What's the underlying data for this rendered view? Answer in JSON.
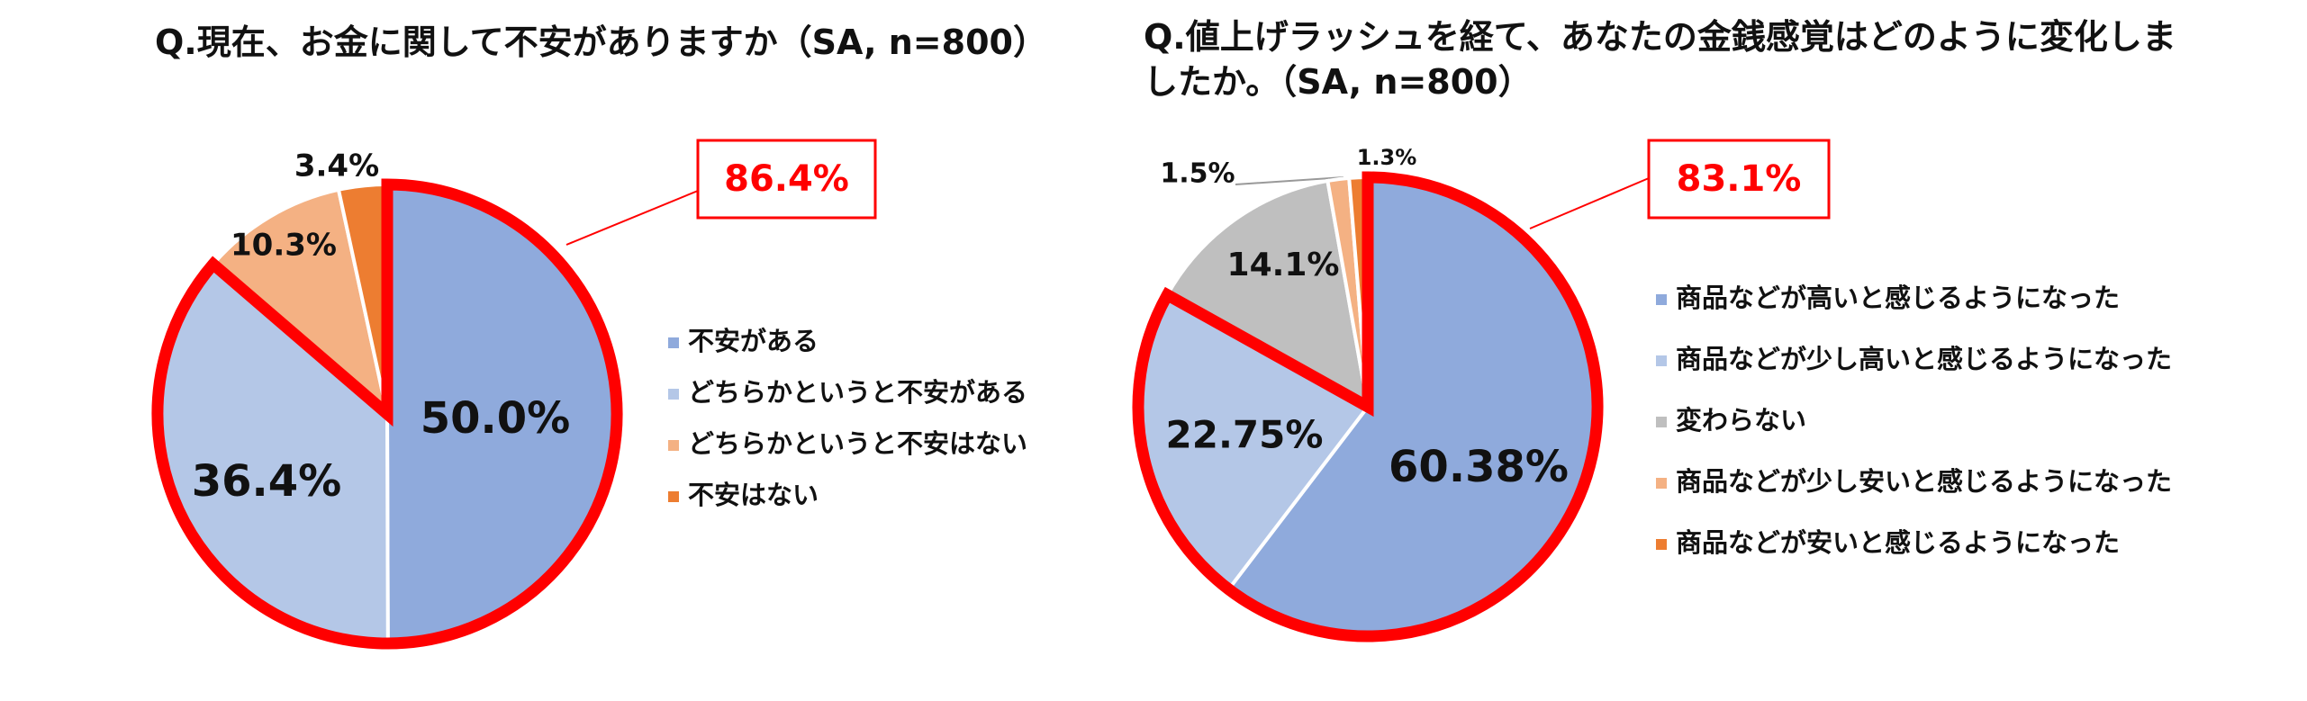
{
  "chart_data": [
    {
      "type": "pie",
      "title": "Q.現在、お金に関して不安がありますか（SA, n=800）",
      "categories": [
        "不安がある",
        "どちらかというと不安がある",
        "どちらかというと不安はない",
        "不安はない"
      ],
      "values": [
        50.0,
        36.4,
        10.3,
        3.4
      ],
      "value_labels": [
        "50.0%",
        "36.4%",
        "10.3%",
        "3.4%"
      ],
      "colors": [
        "#8faadc",
        "#b4c7e7",
        "#f4b183",
        "#ed7d31"
      ],
      "annotation": "86.4%",
      "highlight_color": "#ff0000"
    },
    {
      "type": "pie",
      "title": "Q.値上げラッシュを経て、あなたの金銭感覚はどのように変化しましたか。（SA, n=800）",
      "categories": [
        "商品などが高いと感じるようになった",
        "商品などが少し高いと感じるようになった",
        "変わらない",
        "商品などが少し安いと感じるようになった",
        "商品などが安いと感じるようになった"
      ],
      "values": [
        60.38,
        22.75,
        14.1,
        1.5,
        1.3
      ],
      "value_labels": [
        "60.38%",
        "22.75%",
        "14.1%",
        "1.5%",
        "1.3%"
      ],
      "colors": [
        "#8faadc",
        "#b4c7e7",
        "#bfbfbf",
        "#f4b183",
        "#ed7d31"
      ],
      "annotation": "83.1%",
      "highlight_color": "#ff0000"
    }
  ]
}
